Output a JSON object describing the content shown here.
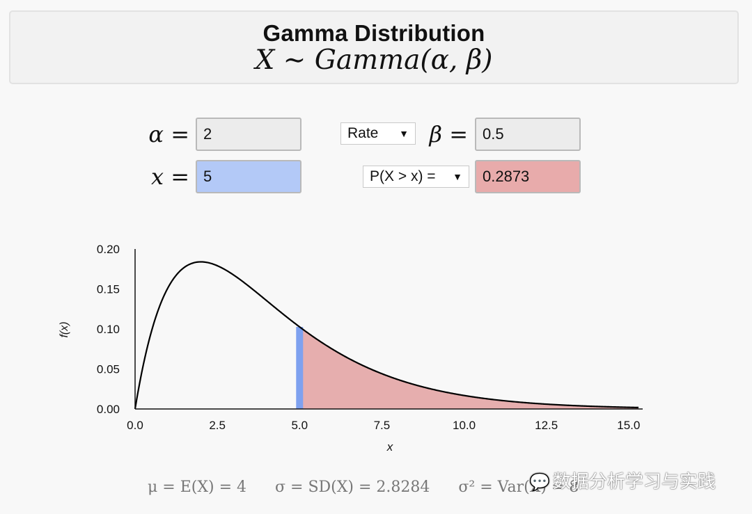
{
  "header": {
    "title": "Gamma Distribution",
    "formula": "X ∼ Gamma(α, β)"
  },
  "inputs": {
    "alpha_label": "α =",
    "alpha_value": "2",
    "beta_label": "β =",
    "beta_value": "0.5",
    "beta_param_select": "Rate",
    "x_label": "x =",
    "x_value": "5",
    "prob_select": "P(X > x) =",
    "prob_value": "0.2873"
  },
  "colors": {
    "x_highlight": "#7ea1ef",
    "tail_fill": "#e6aeae",
    "curve": "#000000"
  },
  "chart_data": {
    "type": "area",
    "xlabel": "x",
    "ylabel": "f(x)",
    "xlim": [
      0,
      15.3
    ],
    "ylim": [
      0,
      0.2
    ],
    "x_ticks": [
      "0.0",
      "2.5",
      "5.0",
      "7.5",
      "10.0",
      "12.5",
      "15.0"
    ],
    "y_ticks": [
      "0.00",
      "0.05",
      "0.10",
      "0.15",
      "0.20"
    ],
    "shape": 2,
    "rate": 0.5,
    "x_marker": 5,
    "shaded_region": "x > 5",
    "x": [
      0,
      0.5,
      1,
      1.5,
      2,
      2.5,
      3,
      3.5,
      4,
      4.5,
      5,
      5.5,
      6,
      6.5,
      7,
      7.5,
      8,
      8.5,
      9,
      9.5,
      10,
      10.5,
      11,
      11.5,
      12,
      12.5,
      13,
      13.5,
      14,
      14.5,
      15,
      15.3
    ],
    "y": [
      0,
      0.0974,
      0.1516,
      0.1771,
      0.1839,
      0.1791,
      0.1673,
      0.1521,
      0.1353,
      0.1186,
      0.1026,
      0.0879,
      0.0747,
      0.063,
      0.0528,
      0.0441,
      0.0366,
      0.0303,
      0.025,
      0.0205,
      0.0168,
      0.0137,
      0.0112,
      0.0091,
      0.0074,
      0.006,
      0.0049,
      0.0039,
      0.0032,
      0.0026,
      0.0021,
      0.0018
    ]
  },
  "stats": {
    "mean": "μ = E(X) = 4",
    "sd": "σ = SD(X) = 2.8284",
    "var": "σ² = Var(X) = 8"
  },
  "watermark": "数据分析学习与实践"
}
